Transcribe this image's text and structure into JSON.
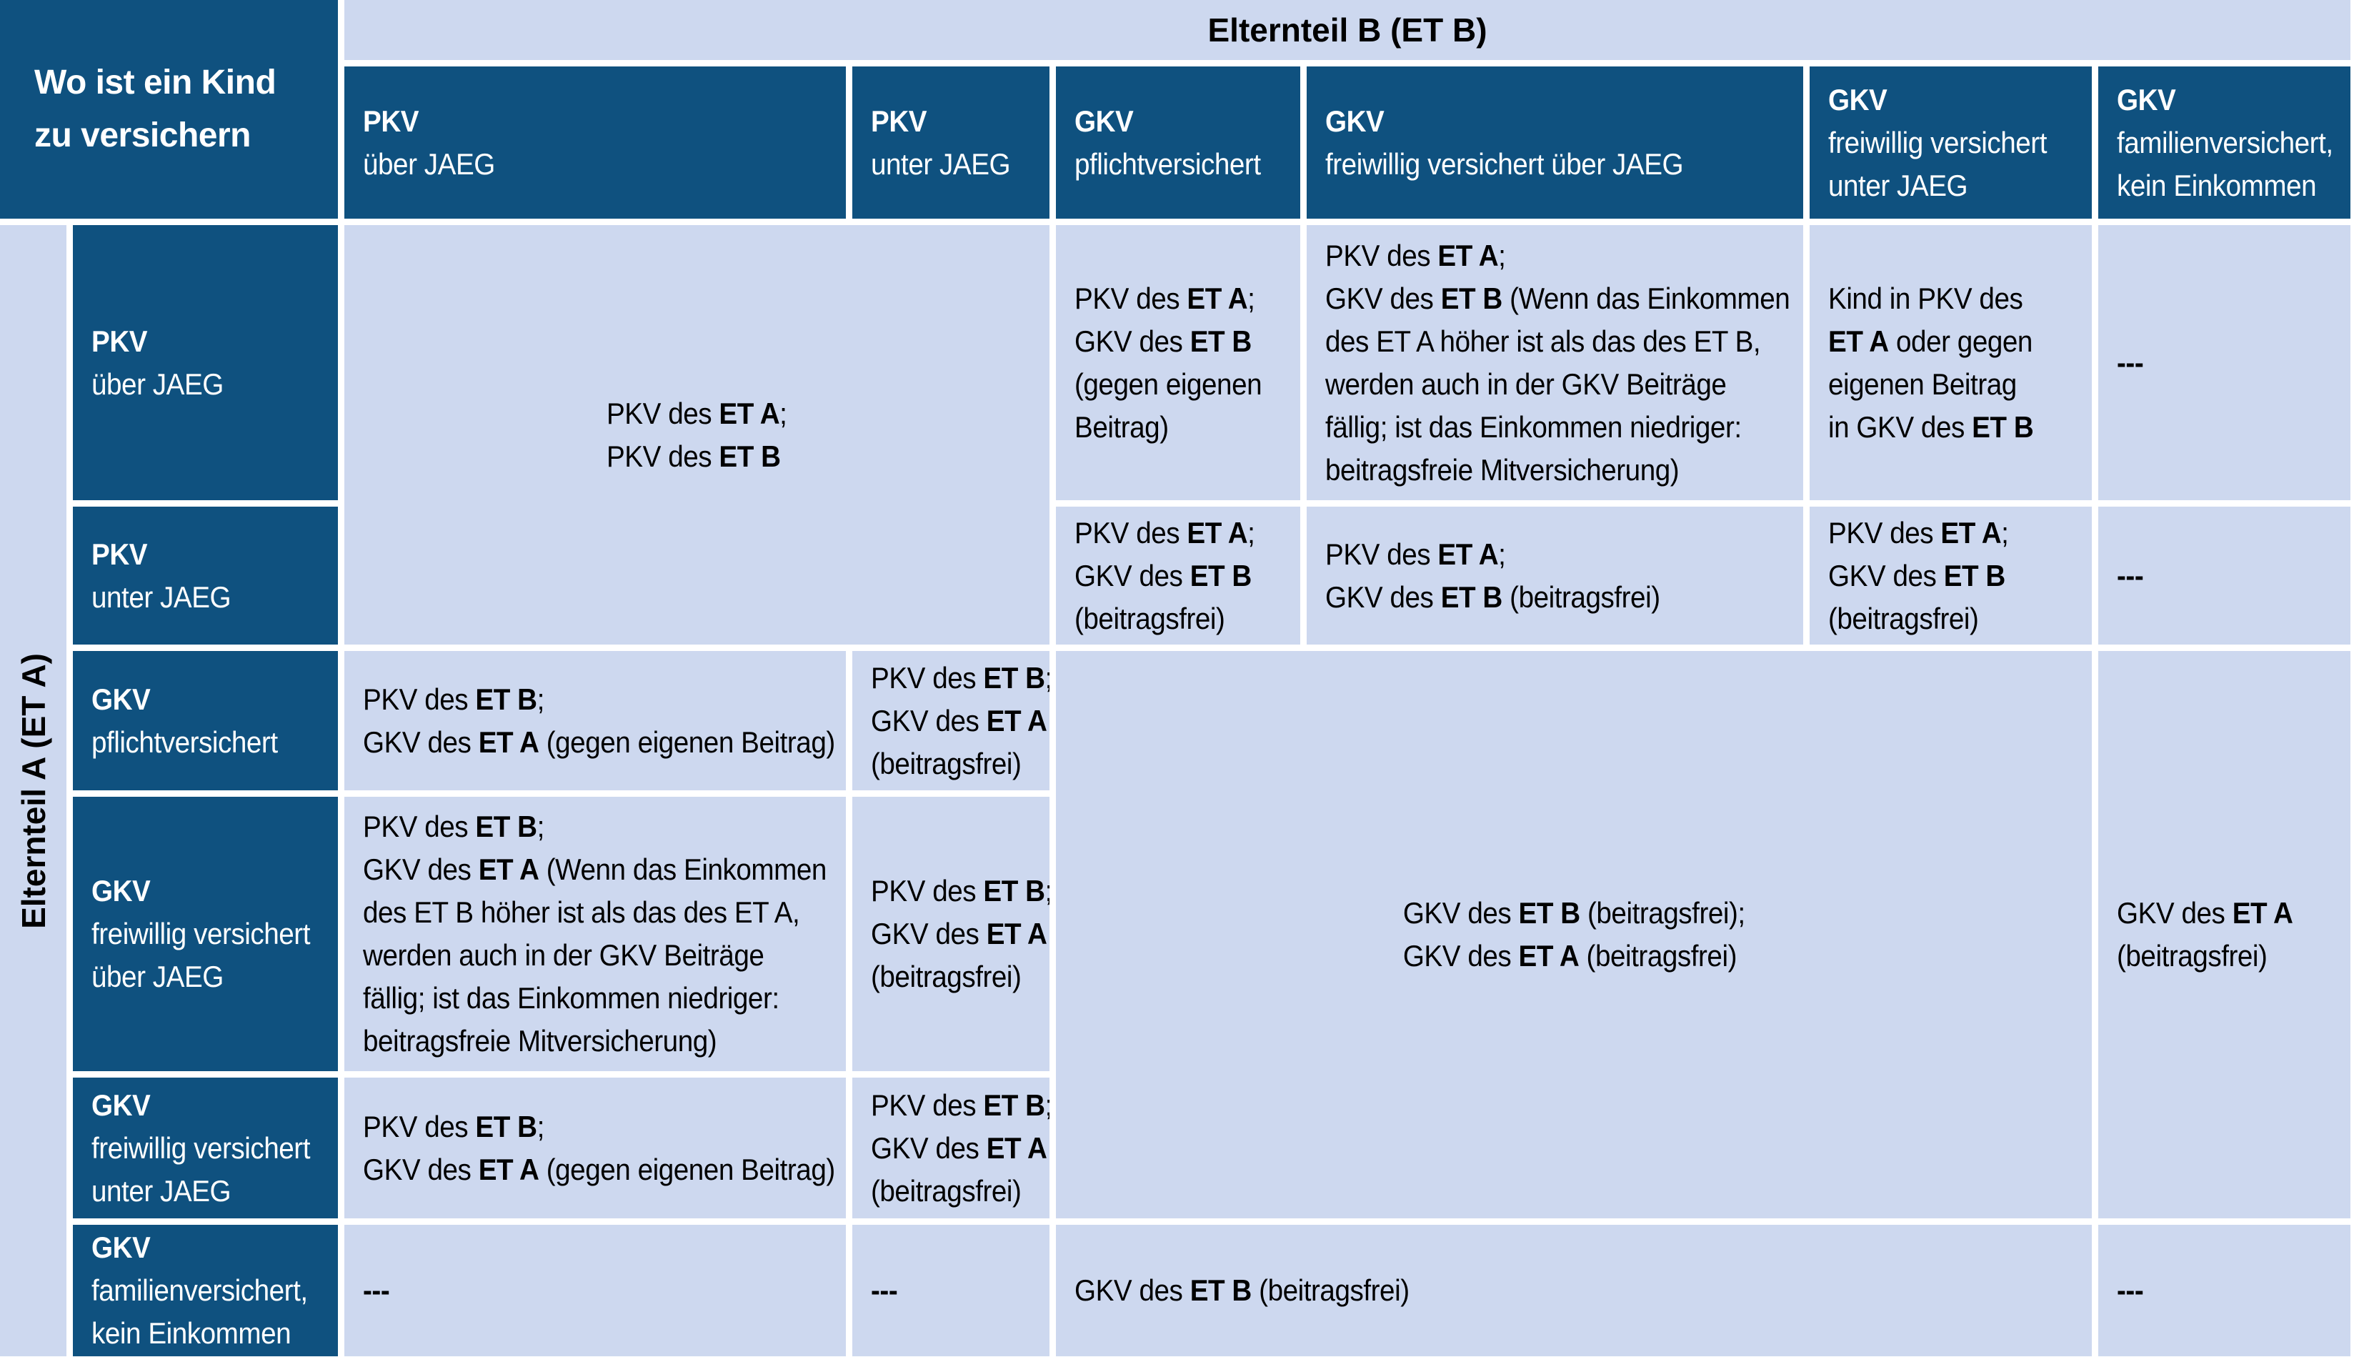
{
  "colors": {
    "header_blue": "#0f517f",
    "cell_blue": "#cdd8ef",
    "text_on_dark": "#ffffff",
    "text_on_light": "#000000",
    "background": "#ffffff"
  },
  "corner": {
    "line1": "Wo ist ein Kind",
    "line2": "zu versichern"
  },
  "axis_b_label": "Elternteil B (ET B)",
  "axis_a_label": "Elternteil A (ET A)",
  "col_headers": [
    {
      "lines": [
        [
          {
            "t": "PKV",
            "b": true
          }
        ],
        [
          {
            "t": "über JAEG"
          }
        ]
      ]
    },
    {
      "lines": [
        [
          {
            "t": "PKV",
            "b": true
          }
        ],
        [
          {
            "t": "unter JAEG"
          }
        ]
      ]
    },
    {
      "lines": [
        [
          {
            "t": "GKV",
            "b": true
          }
        ],
        [
          {
            "t": "pflichtversichert"
          }
        ]
      ]
    },
    {
      "lines": [
        [
          {
            "t": "GKV",
            "b": true
          }
        ],
        [
          {
            "t": "freiwillig versichert über JAEG"
          }
        ]
      ]
    },
    {
      "lines": [
        [
          {
            "t": "GKV",
            "b": true
          }
        ],
        [
          {
            "t": "freiwillig versichert"
          }
        ],
        [
          {
            "t": "unter JAEG"
          }
        ]
      ]
    },
    {
      "lines": [
        [
          {
            "t": "GKV",
            "b": true
          }
        ],
        [
          {
            "t": "familienversichert,"
          }
        ],
        [
          {
            "t": "kein Einkommen"
          }
        ]
      ]
    }
  ],
  "row_headers": [
    {
      "lines": [
        [
          {
            "t": "PKV",
            "b": true
          }
        ],
        [
          {
            "t": "über JAEG"
          }
        ]
      ]
    },
    {
      "lines": [
        [
          {
            "t": "PKV",
            "b": true
          }
        ],
        [
          {
            "t": "unter JAEG"
          }
        ]
      ]
    },
    {
      "lines": [
        [
          {
            "t": "GKV",
            "b": true
          }
        ],
        [
          {
            "t": "pflichtversichert"
          }
        ]
      ]
    },
    {
      "lines": [
        [
          {
            "t": "GKV",
            "b": true
          }
        ],
        [
          {
            "t": "freiwillig versichert"
          }
        ],
        [
          {
            "t": "über JAEG"
          }
        ]
      ]
    },
    {
      "lines": [
        [
          {
            "t": "GKV",
            "b": true
          }
        ],
        [
          {
            "t": "freiwillig versichert"
          }
        ],
        [
          {
            "t": "unter JAEG"
          }
        ]
      ]
    },
    {
      "lines": [
        [
          {
            "t": "GKV",
            "b": true
          }
        ],
        [
          {
            "t": "familienversichert,"
          }
        ],
        [
          {
            "t": "kein Einkommen"
          }
        ]
      ]
    }
  ],
  "cells": {
    "pkv_both": {
      "lines": [
        [
          {
            "t": "PKV des "
          },
          {
            "t": "ET A",
            "b": true
          },
          {
            "t": ";"
          }
        ],
        [
          {
            "t": "PKV des "
          },
          {
            "t": "ET B",
            "b": true
          }
        ]
      ]
    },
    "row1_gkv_pflicht": {
      "lines": [
        [
          {
            "t": "PKV des "
          },
          {
            "t": "ET A",
            "b": true
          },
          {
            "t": ";"
          }
        ],
        [
          {
            "t": "GKV des "
          },
          {
            "t": "ET B",
            "b": true
          }
        ],
        [
          {
            "t": "(gegen eigenen"
          }
        ],
        [
          {
            "t": "Beitrag)"
          }
        ]
      ]
    },
    "row1_gkv_frei_ueber": {
      "lines": [
        [
          {
            "t": "PKV des "
          },
          {
            "t": "ET A",
            "b": true
          },
          {
            "t": ";"
          }
        ],
        [
          {
            "t": "GKV des "
          },
          {
            "t": "ET B",
            "b": true
          },
          {
            "t": " (Wenn das Einkommen"
          }
        ],
        [
          {
            "t": "des ET A höher ist als das des ET B,"
          }
        ],
        [
          {
            "t": "werden auch in der GKV Beiträge"
          }
        ],
        [
          {
            "t": "fällig; ist das Einkommen niedriger:"
          }
        ],
        [
          {
            "t": "beitragsfreie Mitversicherung)"
          }
        ]
      ]
    },
    "row1_gkv_frei_unter": {
      "lines": [
        [
          {
            "t": "Kind in PKV des"
          }
        ],
        [
          {
            "t": "ET A",
            "b": true
          },
          {
            "t": " oder gegen"
          }
        ],
        [
          {
            "t": "eigenen Beitrag"
          }
        ],
        [
          {
            "t": "in GKV des "
          },
          {
            "t": "ET B",
            "b": true
          }
        ]
      ]
    },
    "row1_gkv_fam": {
      "lines": [
        [
          {
            "t": "---",
            "b": true
          }
        ]
      ]
    },
    "row2_gkv_pflicht": {
      "lines": [
        [
          {
            "t": "PKV des "
          },
          {
            "t": "ET A",
            "b": true
          },
          {
            "t": ";"
          }
        ],
        [
          {
            "t": "GKV des "
          },
          {
            "t": "ET B",
            "b": true
          }
        ],
        [
          {
            "t": "(beitragsfrei)"
          }
        ]
      ]
    },
    "row2_gkv_frei_ueber": {
      "lines": [
        [
          {
            "t": "PKV des "
          },
          {
            "t": "ET A",
            "b": true
          },
          {
            "t": ";"
          }
        ],
        [
          {
            "t": "GKV des "
          },
          {
            "t": "ET B",
            "b": true
          },
          {
            "t": " (beitragsfrei)"
          }
        ]
      ]
    },
    "row2_gkv_frei_unter": {
      "lines": [
        [
          {
            "t": "PKV des "
          },
          {
            "t": "ET A",
            "b": true
          },
          {
            "t": ";"
          }
        ],
        [
          {
            "t": "GKV des "
          },
          {
            "t": "ET B",
            "b": true
          }
        ],
        [
          {
            "t": "(beitragsfrei)"
          }
        ]
      ]
    },
    "row2_gkv_fam": {
      "lines": [
        [
          {
            "t": "---",
            "b": true
          }
        ]
      ]
    },
    "row3_pkv_ueber": {
      "lines": [
        [
          {
            "t": "PKV des "
          },
          {
            "t": "ET B",
            "b": true
          },
          {
            "t": ";"
          }
        ],
        [
          {
            "t": "GKV des "
          },
          {
            "t": "ET A",
            "b": true
          },
          {
            "t": " (gegen eigenen Beitrag)"
          }
        ]
      ]
    },
    "row3_pkv_unter": {
      "lines": [
        [
          {
            "t": "PKV des "
          },
          {
            "t": "ET B",
            "b": true
          },
          {
            "t": ";"
          }
        ],
        [
          {
            "t": "GKV des "
          },
          {
            "t": "ET A",
            "b": true
          }
        ],
        [
          {
            "t": "(beitragsfrei)"
          }
        ]
      ]
    },
    "mid_merged": {
      "lines": [
        [
          {
            "t": "GKV des "
          },
          {
            "t": "ET B",
            "b": true
          },
          {
            "t": " (beitragsfrei);"
          }
        ],
        [
          {
            "t": "GKV des "
          },
          {
            "t": "ET A",
            "b": true
          },
          {
            "t": " (beitragsfrei)"
          }
        ]
      ]
    },
    "right_merged": {
      "lines": [
        [
          {
            "t": "GKV des "
          },
          {
            "t": "ET A",
            "b": true
          }
        ],
        [
          {
            "t": "(beitragsfrei)"
          }
        ]
      ]
    },
    "row4_pkv_ueber": {
      "lines": [
        [
          {
            "t": "PKV des "
          },
          {
            "t": "ET B",
            "b": true
          },
          {
            "t": ";"
          }
        ],
        [
          {
            "t": "GKV des "
          },
          {
            "t": "ET A",
            "b": true
          },
          {
            "t": " (Wenn das Einkommen"
          }
        ],
        [
          {
            "t": "des ET B höher ist als das des ET A,"
          }
        ],
        [
          {
            "t": "werden auch in der GKV Beiträge"
          }
        ],
        [
          {
            "t": "fällig; ist das Einkommen niedriger:"
          }
        ],
        [
          {
            "t": "beitragsfreie Mitversicherung)"
          }
        ]
      ]
    },
    "row4_pkv_unter": {
      "lines": [
        [
          {
            "t": "PKV des "
          },
          {
            "t": "ET B",
            "b": true
          },
          {
            "t": ";"
          }
        ],
        [
          {
            "t": "GKV des "
          },
          {
            "t": "ET A",
            "b": true
          }
        ],
        [
          {
            "t": "(beitragsfrei)"
          }
        ]
      ]
    },
    "row5_pkv_ueber": {
      "lines": [
        [
          {
            "t": "PKV des "
          },
          {
            "t": "ET B",
            "b": true
          },
          {
            "t": ";"
          }
        ],
        [
          {
            "t": "GKV des "
          },
          {
            "t": "ET A",
            "b": true
          },
          {
            "t": " (gegen eigenen Beitrag)"
          }
        ]
      ]
    },
    "row5_pkv_unter": {
      "lines": [
        [
          {
            "t": "PKV des "
          },
          {
            "t": "ET B",
            "b": true
          },
          {
            "t": ";"
          }
        ],
        [
          {
            "t": "GKV des "
          },
          {
            "t": "ET A",
            "b": true
          }
        ],
        [
          {
            "t": "(beitragsfrei)"
          }
        ]
      ]
    },
    "row6_pkv_ueber": {
      "lines": [
        [
          {
            "t": "---",
            "b": true
          }
        ]
      ]
    },
    "row6_pkv_unter": {
      "lines": [
        [
          {
            "t": "---",
            "b": true
          }
        ]
      ]
    },
    "row6_mid": {
      "lines": [
        [
          {
            "t": "GKV des "
          },
          {
            "t": "ET B",
            "b": true
          },
          {
            "t": " (beitragsfrei)"
          }
        ]
      ]
    },
    "row6_fam": {
      "lines": [
        [
          {
            "t": "---",
            "b": true
          }
        ]
      ]
    }
  }
}
